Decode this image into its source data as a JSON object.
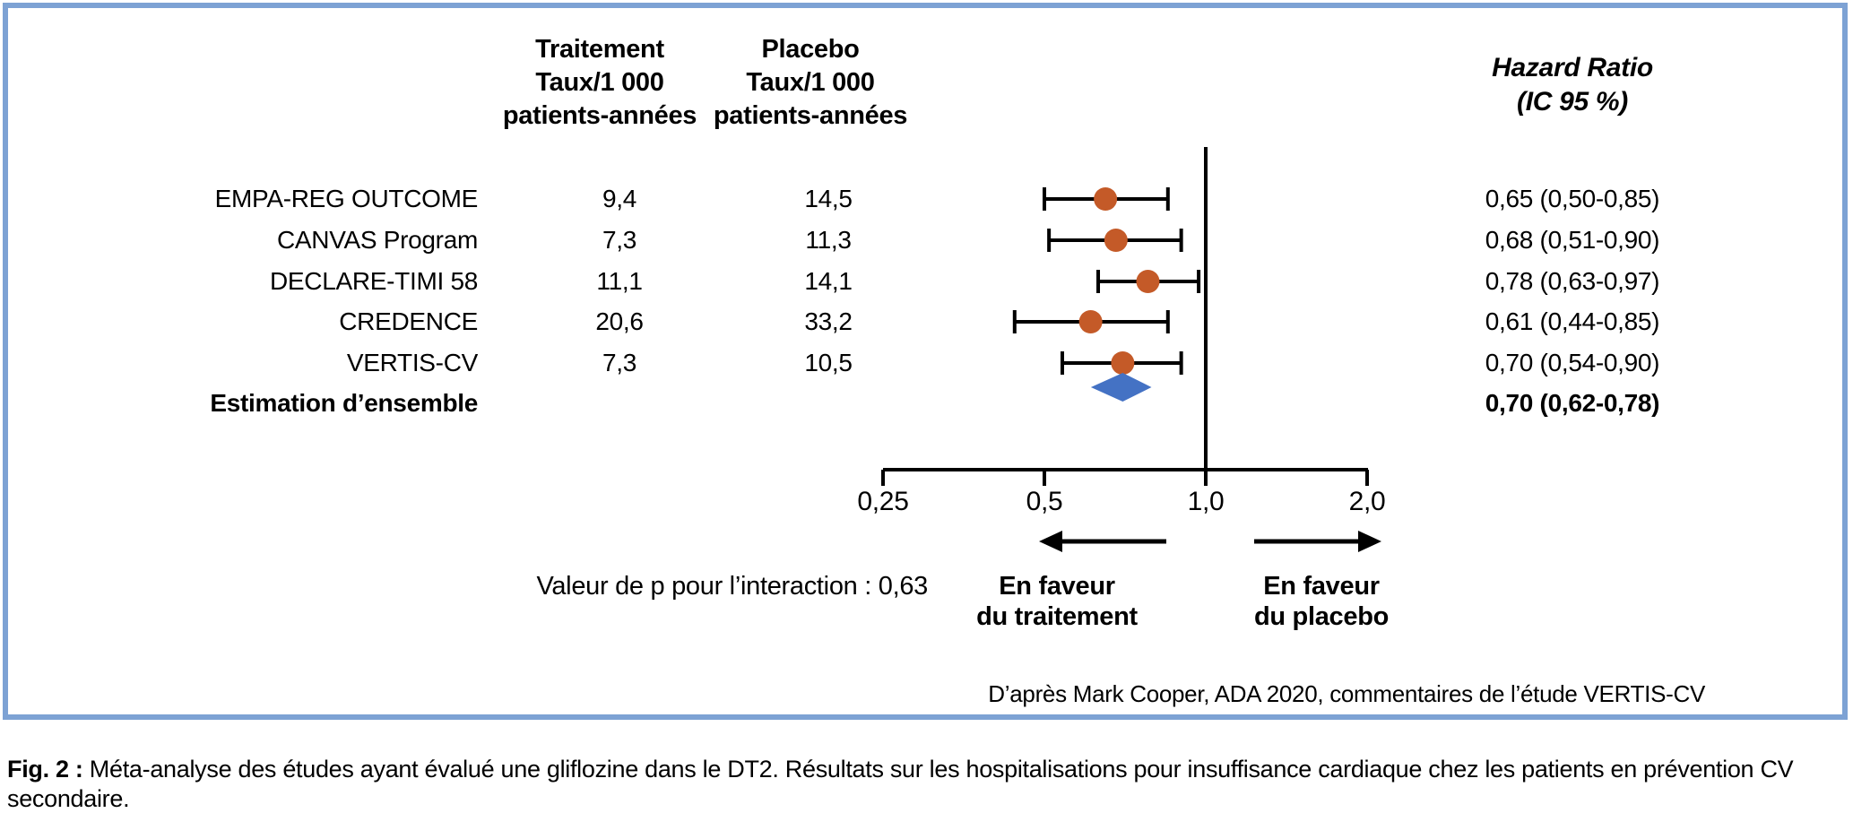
{
  "table": {
    "header_treatment": [
      "Traitement",
      "Taux/1 000",
      "patients-années"
    ],
    "header_placebo": [
      "Placebo",
      "Taux/1 000",
      "patients-années"
    ],
    "header_hr": [
      "Hazard Ratio",
      "(IC 95 %)"
    ]
  },
  "chart_data": {
    "type": "forest",
    "x_axis": {
      "scale": "log2",
      "ticks": [
        0.25,
        0.5,
        1.0,
        2.0
      ],
      "tick_labels": [
        "0,25",
        "0,5",
        "1,0",
        "2,0"
      ],
      "reference_line": 1.0
    },
    "studies": [
      {
        "name": "EMPA-REG OUTCOME",
        "treatment_rate": "9,4",
        "placebo_rate": "14,5",
        "hr": 0.65,
        "ci_low": 0.5,
        "ci_high": 0.85,
        "hr_label": "0,65 (0,50-0,85)"
      },
      {
        "name": "CANVAS Program",
        "treatment_rate": "7,3",
        "placebo_rate": "11,3",
        "hr": 0.68,
        "ci_low": 0.51,
        "ci_high": 0.9,
        "hr_label": "0,68 (0,51-0,90)"
      },
      {
        "name": "DECLARE-TIMI 58",
        "treatment_rate": "11,1",
        "placebo_rate": "14,1",
        "hr": 0.78,
        "ci_low": 0.63,
        "ci_high": 0.97,
        "hr_label": "0,78 (0,63-0,97)"
      },
      {
        "name": "CREDENCE",
        "treatment_rate": "20,6",
        "placebo_rate": "33,2",
        "hr": 0.61,
        "ci_low": 0.44,
        "ci_high": 0.85,
        "hr_label": "0,61 (0,44-0,85)"
      },
      {
        "name": "VERTIS-CV",
        "treatment_rate": "7,3",
        "placebo_rate": "10,5",
        "hr": 0.7,
        "ci_low": 0.54,
        "ci_high": 0.9,
        "hr_label": "0,70 (0,54-0,90)"
      }
    ],
    "overall": {
      "name": "Estimation d’ensemble",
      "hr": 0.7,
      "ci_low": 0.62,
      "ci_high": 0.78,
      "hr_label": "0,70 (0,62-0,78)"
    }
  },
  "annotations": {
    "p_interaction": "Valeur de p pour l’interaction : 0,63",
    "favor_left": [
      "En faveur",
      "du traitement"
    ],
    "favor_right": [
      "En faveur",
      "du placebo"
    ],
    "attribution": "D’après Mark Cooper, ADA 2020, commentaires de l’étude VERTIS-CV"
  },
  "caption": {
    "label": "Fig. 2 :",
    "text": " Méta-analyse des études ayant évalué une gliflozine dans le DT2. Résultats sur les hospitalisations pour insuffisance cardiaque chez les patients en prévention CV secondaire."
  },
  "colors": {
    "marker": "#C45A28",
    "diamond": "#4472C4",
    "border": "#7DA2D4",
    "line": "#000000"
  }
}
